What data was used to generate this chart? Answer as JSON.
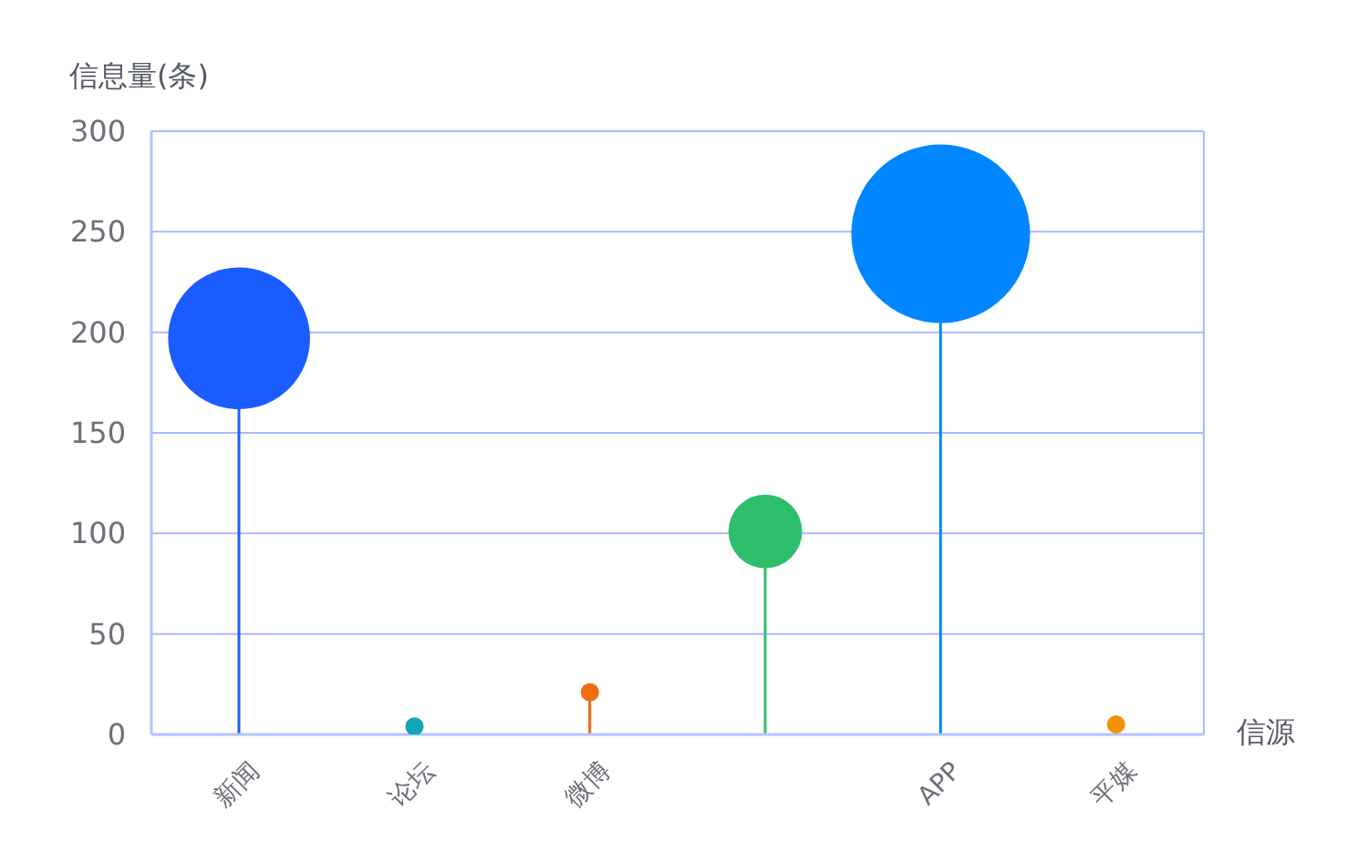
{
  "chart_data": {
    "type": "lollipop",
    "xlabel": "信源",
    "ylabel": "信息量(条)",
    "categories": [
      "新闻",
      "论坛",
      "微博",
      null,
      "APP",
      "平媒"
    ],
    "values": [
      197,
      4,
      21,
      101,
      249,
      5
    ],
    "sizes": [
      0.63,
      0.01,
      0.01,
      0.17,
      1,
      0.01
    ],
    "colors": [
      "#1a5cff",
      "#12a6b8",
      "#f26b10",
      "#2dbe6c",
      "#0086ff",
      "#f09200"
    ],
    "marker": "circle",
    "ylim": [
      0,
      300
    ],
    "yticks": [
      0,
      50,
      100,
      150,
      200,
      250,
      300
    ],
    "grid": "y"
  }
}
